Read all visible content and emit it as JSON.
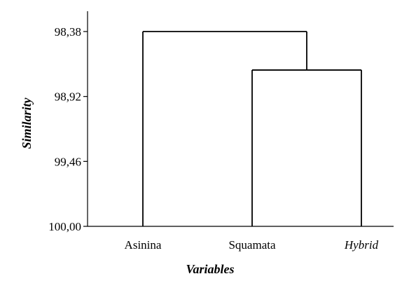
{
  "chart_data": {
    "type": "dendrogram",
    "xlabel": "Variables",
    "ylabel": "Similarity",
    "ylim": [
      98.38,
      100.0
    ],
    "y_ticks": [
      {
        "value": 98.38,
        "label": "98,38"
      },
      {
        "value": 98.92,
        "label": "98,92"
      },
      {
        "value": 99.46,
        "label": "99,46"
      },
      {
        "value": 100.0,
        "label": "100,00"
      }
    ],
    "leaves": [
      {
        "label": "Asinina",
        "italic": false
      },
      {
        "label": "Squamata",
        "italic": false
      },
      {
        "label": "Hybrid",
        "italic": true
      }
    ],
    "merges": [
      {
        "left": "Squamata",
        "right": "Hybrid",
        "similarity": 98.7
      },
      {
        "left": "Asinina",
        "right": "Squamata + Hybrid",
        "similarity": 98.38
      }
    ]
  }
}
